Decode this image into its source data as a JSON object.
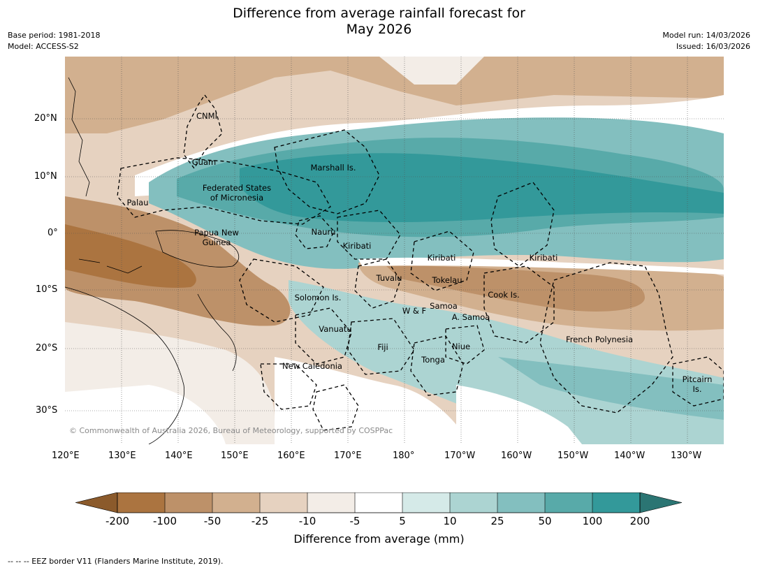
{
  "title": {
    "line1": "Difference from average rainfall forecast for",
    "line2": "May 2026"
  },
  "meta": {
    "base_period": "Base period: 1981-2018",
    "model": "Model: ACCESS-S2",
    "model_run": "Model run: 14/03/2026",
    "issued": "Issued: 16/03/2026"
  },
  "axes": {
    "lon_ticks": [
      "120°E",
      "130°E",
      "140°E",
      "150°E",
      "160°E",
      "170°E",
      "180°",
      "170°W",
      "160°W",
      "150°W",
      "140°W",
      "130°W"
    ],
    "lat_ticks": [
      "20°N",
      "10°N",
      "0°",
      "10°S",
      "20°S",
      "30°S"
    ]
  },
  "places": {
    "cnmi": "CNMI",
    "guam": "Guam",
    "marshall": "Marshall Is.",
    "fsm_1": "Federated States",
    "fsm_2": "of Micronesia",
    "palau": "Palau",
    "png_1": "Papua New",
    "png_2": "Guinea",
    "nauru": "Nauru",
    "kiribati_w": "Kiribati",
    "kiribati_c": "Kiribati",
    "kiribati_e": "Kiribati",
    "tuvalu": "Tuvalu",
    "tokelau": "Tokelau",
    "cook": "Cook Is.",
    "solomon": "Solomon Is.",
    "wf": "W & F",
    "samoa": "Samoa",
    "asamoa": "A. Samoa",
    "vanuatu": "Vanuatu",
    "fiji": "Fiji",
    "niue": "Niue",
    "tonga": "Tonga",
    "frpoly": "French Polynesia",
    "newcal": "New Caledonia",
    "pitcairn_1": "Pitcairn",
    "pitcairn_2": "Is."
  },
  "copyright": "© Commonwealth of Australia 2026, Bureau of Meteorology, supported by COSPPac",
  "colorbar": {
    "labels": [
      "-200",
      "-100",
      "-50",
      "-25",
      "-10",
      "-5",
      "5",
      "10",
      "25",
      "50",
      "100",
      "200"
    ],
    "colors": [
      "#8b5a2b",
      "#ab7440",
      "#bd9169",
      "#d2b08f",
      "#e6d2c0",
      "#f3ede7",
      "#ffffff",
      "#d5eae8",
      "#acd4d2",
      "#83bfbf",
      "#58aaa9",
      "#33999a",
      "#2b7573"
    ],
    "title": "Difference from average (mm)"
  },
  "footnote": "--  --  -- EEZ border V11 (Flanders Marine Institute, 2019)."
}
